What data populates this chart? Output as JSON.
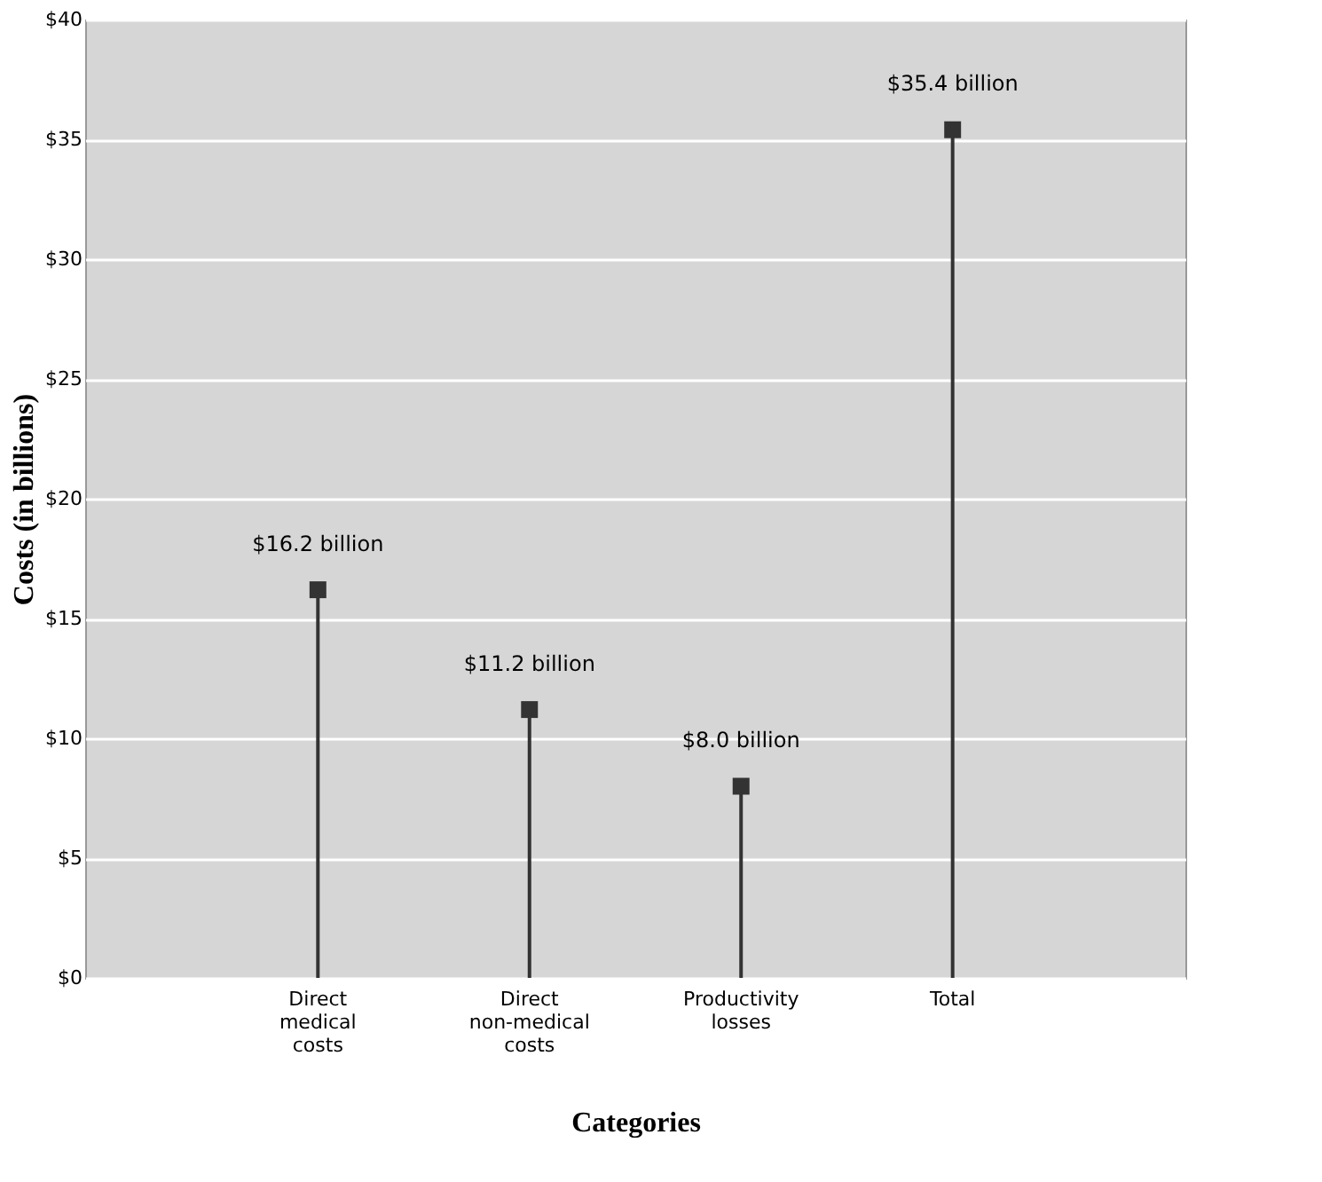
{
  "chart_data": {
    "type": "lollipop",
    "xlabel": "Categories",
    "ylabel": "Costs (in billions)",
    "categories": [
      "Direct medical costs",
      "Direct non-medical costs",
      "Productivity losses",
      "Total"
    ],
    "values": [
      16.2,
      11.2,
      8.0,
      35.4
    ],
    "value_labels": [
      "$16.2 billion",
      "$11.2 billion",
      "$8.0 billion",
      "$35.4 billion"
    ],
    "color": "#333333",
    "ylim": [
      0,
      40
    ],
    "yticks": [
      {
        "value": 0,
        "label": "$0"
      },
      {
        "value": 5,
        "label": "$5"
      },
      {
        "value": 10,
        "label": "$10"
      },
      {
        "value": 15,
        "label": "$15"
      },
      {
        "value": 20,
        "label": "$20"
      },
      {
        "value": 25,
        "label": "$25"
      },
      {
        "value": 30,
        "label": "$30"
      },
      {
        "value": 35,
        "label": "$35"
      },
      {
        "value": 40,
        "label": "$40"
      }
    ],
    "grid": "y",
    "marker": "square"
  }
}
